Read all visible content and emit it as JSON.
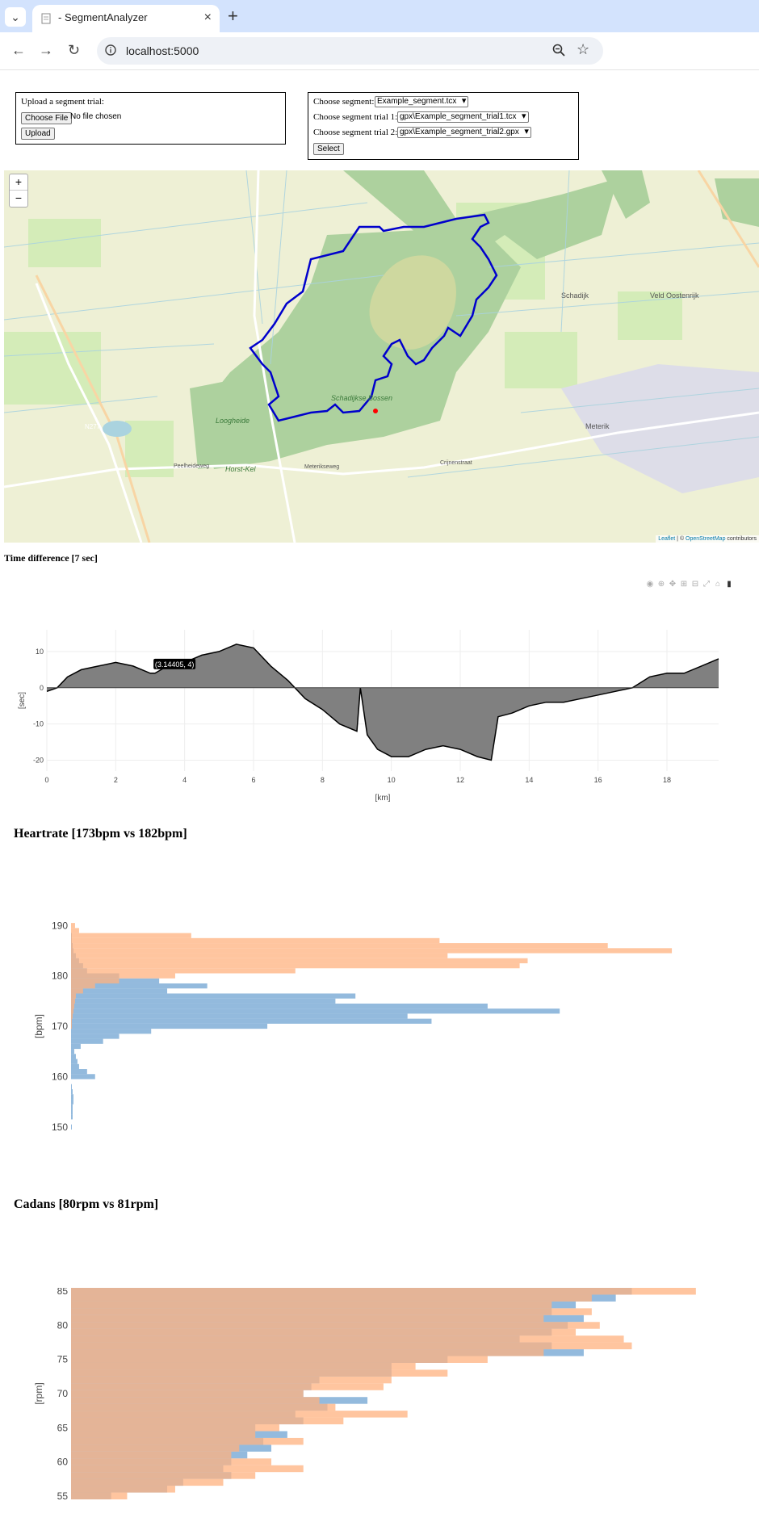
{
  "browser": {
    "tab_title": "- SegmentAnalyzer",
    "url": "localhost:5000",
    "new_tab_label": "+",
    "menu_icon": "chevron-down-icon"
  },
  "upload": {
    "label": "Upload a segment trial:",
    "choose_file_label": "Choose File",
    "no_file_text": "No file chosen",
    "upload_button": "Upload"
  },
  "select_form": {
    "segment_label": "Choose segment:",
    "segment_value": "Example_segment.tcx",
    "trial1_label": "Choose segment trial 1:",
    "trial1_value": "gpx\\Example_segment_trial1.tcx",
    "trial2_label": "Choose segment trial 2:",
    "trial2_value": "gpx\\Example_segment_trial2.gpx",
    "select_button": "Select"
  },
  "map": {
    "zoom_in": "+",
    "zoom_out": "−",
    "attribution_leaflet": "Leaflet",
    "attribution_sep": " | © ",
    "attribution_osm": "OpenStreetMap",
    "attribution_tail": " contributors",
    "place_labels": [
      "Schadijkse Bossen",
      "Schadijk",
      "Veld Oostenrijk",
      "Meterik",
      "Loogheide",
      "Horst-Kel",
      "N277",
      "Peelheideweg",
      "Meterikseweg",
      "Crijnenstraat"
    ],
    "colors": {
      "route": "#0000cc",
      "forest": "#add19e",
      "farmland": "#eef0d5",
      "marker": "#ff0000"
    }
  },
  "time_diff": {
    "heading": "Time difference [7 sec]",
    "tooltip": "(3.14405, 4)"
  },
  "heartrate": {
    "heading": "Heartrate [173bpm vs 182bpm]"
  },
  "cadans": {
    "heading": "Cadans [80rpm vs 81rpm]"
  },
  "chart_data": [
    {
      "type": "area",
      "xlabel": "[km]",
      "ylabel": "[sec]",
      "xlim": [
        0,
        19.5
      ],
      "ylim": [
        -23,
        16
      ],
      "xticks": [
        0,
        2,
        4,
        6,
        8,
        10,
        12,
        14,
        16,
        18
      ],
      "yticks": [
        10,
        0,
        -10,
        -20
      ],
      "x": [
        0,
        0.3,
        0.6,
        1,
        1.5,
        2,
        2.5,
        3,
        3.14,
        3.5,
        4,
        4.5,
        5,
        5.5,
        6,
        6.5,
        7,
        7.5,
        8,
        8.5,
        9,
        9.1,
        9.3,
        9.6,
        10,
        10.5,
        11,
        11.5,
        12,
        12.5,
        12.9,
        13.1,
        13.5,
        14,
        14.5,
        15,
        15.5,
        16,
        16.5,
        17,
        17.5,
        18,
        18.5,
        19,
        19.5
      ],
      "y": [
        -1,
        0,
        3,
        5,
        6,
        7,
        6,
        4,
        4,
        6,
        7,
        9,
        10,
        12,
        11,
        6,
        2,
        -3,
        -6,
        -10,
        -12,
        0,
        -13,
        -17,
        -19,
        -19,
        -17,
        -16,
        -17,
        -19,
        -20,
        -8,
        -7,
        -5,
        -4,
        -4,
        -3,
        -2,
        -1,
        0,
        3,
        4,
        4,
        6,
        8
      ],
      "annotation": {
        "x": 3.14405,
        "y": 4
      }
    },
    {
      "type": "bar",
      "orientation": "horizontal",
      "ylabel": "[bpm]",
      "ylim": [
        149,
        191
      ],
      "yticks": [
        150,
        160,
        170,
        180,
        190
      ],
      "categories": [
        150,
        152,
        153,
        154,
        155,
        156,
        157,
        158,
        160,
        161,
        162,
        163,
        164,
        165,
        166,
        167,
        168,
        169,
        170,
        171,
        172,
        173,
        174,
        175,
        176,
        177,
        178,
        179,
        180,
        181,
        182,
        183,
        184,
        185,
        186,
        187,
        188,
        189,
        190
      ],
      "series": [
        {
          "color": "#6fa3d1",
          "values": [
            1,
            2,
            2,
            2,
            3,
            3,
            2,
            1,
            30,
            20,
            10,
            8,
            6,
            4,
            12,
            40,
            60,
            100,
            245,
            450,
            420,
            610,
            520,
            330,
            355,
            120,
            170,
            110,
            60,
            20,
            15,
            10,
            6,
            3,
            2,
            1,
            1,
            0,
            0
          ]
        },
        {
          "color": "#ffb27f",
          "values": [
            0,
            0,
            0,
            0,
            0,
            0,
            0,
            0,
            0,
            0,
            0,
            0,
            0,
            0,
            0,
            0,
            0,
            0,
            1,
            1,
            2,
            3,
            4,
            5,
            6,
            15,
            30,
            60,
            130,
            280,
            560,
            570,
            470,
            750,
            670,
            460,
            150,
            10,
            5
          ]
        }
      ]
    },
    {
      "type": "bar",
      "orientation": "horizontal",
      "ylabel": "[rpm]",
      "ylim": [
        54.5,
        85.5
      ],
      "yticks": [
        55,
        60,
        65,
        70,
        75,
        80,
        85
      ],
      "categories": [
        55,
        56,
        57,
        58,
        59,
        60,
        61,
        62,
        63,
        64,
        65,
        66,
        67,
        68,
        69,
        70,
        71,
        72,
        73,
        74,
        75,
        76,
        77,
        78,
        79,
        80,
        81,
        82,
        83,
        84,
        85
      ],
      "series": [
        {
          "color": "#6fa3d1",
          "values": [
            50,
            120,
            140,
            200,
            190,
            200,
            220,
            250,
            240,
            270,
            230,
            290,
            280,
            320,
            370,
            290,
            300,
            310,
            400,
            400,
            470,
            640,
            600,
            560,
            600,
            620,
            640,
            600,
            630,
            680,
            700
          ]
        },
        {
          "color": "#ffb27f",
          "values": [
            70,
            130,
            190,
            230,
            290,
            250,
            200,
            210,
            290,
            230,
            260,
            340,
            420,
            330,
            310,
            290,
            390,
            400,
            470,
            430,
            520,
            590,
            700,
            690,
            630,
            660,
            590,
            650,
            600,
            650,
            780
          ]
        }
      ]
    }
  ]
}
